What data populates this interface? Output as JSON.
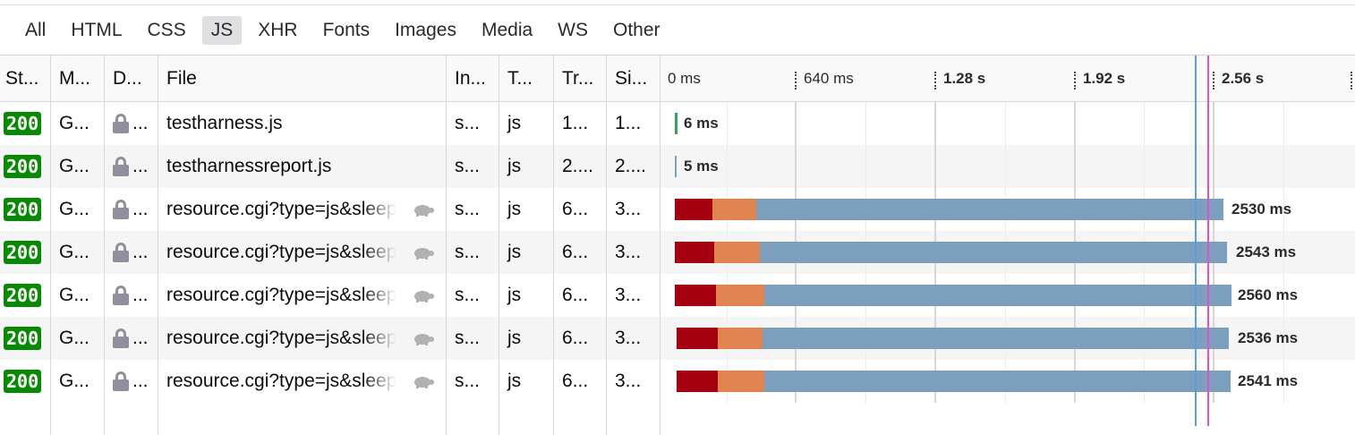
{
  "filters": [
    "All",
    "HTML",
    "CSS",
    "JS",
    "XHR",
    "Fonts",
    "Images",
    "Media",
    "WS",
    "Other"
  ],
  "active_filter": "JS",
  "columns": [
    "St...",
    "M...",
    "D...",
    "File",
    "In...",
    "T...",
    "Tr...",
    "Si..."
  ],
  "timeline": {
    "ticks": [
      {
        "label": "0 ms",
        "bold": false
      },
      {
        "label": "640 ms",
        "bold": false
      },
      {
        "label": "1.28 s",
        "bold": true
      },
      {
        "label": "1.92 s",
        "bold": true
      },
      {
        "label": "2.56 s",
        "bold": true
      }
    ],
    "dom_content_loaded_ms": 2.48,
    "load_ms": 2.53
  },
  "rows": [
    {
      "status": "200",
      "method": "G...",
      "domain": "...",
      "file": "testharness.js",
      "initiator": "s...",
      "type": "js",
      "transferred": "1...",
      "size": "1...",
      "timing_label": "6 ms",
      "throttled": false
    },
    {
      "status": "200",
      "method": "G...",
      "domain": "...",
      "file": "testharnessreport.js",
      "initiator": "s...",
      "type": "js",
      "transferred": "2....",
      "size": "2....",
      "timing_label": "5 ms",
      "throttled": false
    },
    {
      "status": "200",
      "method": "G...",
      "domain": "...",
      "file": "resource.cgi?type=js&sleep",
      "initiator": "s...",
      "type": "js",
      "transferred": "6...",
      "size": "3...",
      "timing_label": "2530 ms",
      "throttled": true
    },
    {
      "status": "200",
      "method": "G...",
      "domain": "...",
      "file": "resource.cgi?type=js&sleep",
      "initiator": "s...",
      "type": "js",
      "transferred": "6...",
      "size": "3...",
      "timing_label": "2543 ms",
      "throttled": true
    },
    {
      "status": "200",
      "method": "G...",
      "domain": "...",
      "file": "resource.cgi?type=js&sleep",
      "initiator": "s...",
      "type": "js",
      "transferred": "6...",
      "size": "3...",
      "timing_label": "2560 ms",
      "throttled": true
    },
    {
      "status": "200",
      "method": "G...",
      "domain": "...",
      "file": "resource.cgi?type=js&sleep",
      "initiator": "s...",
      "type": "js",
      "transferred": "6...",
      "size": "3...",
      "timing_label": "2536 ms",
      "throttled": true
    },
    {
      "status": "200",
      "method": "G...",
      "domain": "...",
      "file": "resource.cgi?type=js&sleep",
      "initiator": "s...",
      "type": "js",
      "transferred": "6...",
      "size": "3...",
      "timing_label": "2541 ms",
      "throttled": true
    }
  ],
  "colors": {
    "status_ok": "#058b00",
    "blocked": "#a4000f",
    "connecting": "#e1844f",
    "waiting": "#7c9fbd",
    "short_green": "#2fa85d",
    "short_blue": "#7c9fbd",
    "dom_line": "#5b9fe0",
    "load_line": "#e551c6"
  }
}
